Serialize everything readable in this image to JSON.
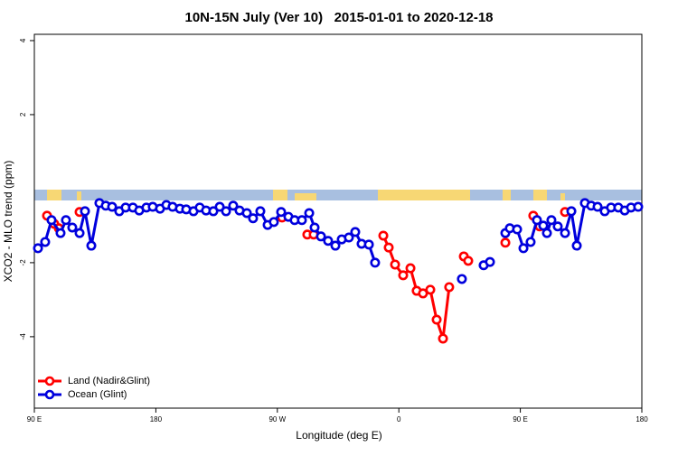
{
  "chart_data": {
    "type": "line",
    "title": "10N-15N July (Ver 10)   2015-01-01 to 2020-12-18",
    "xlabel": "Longitude (deg E)",
    "ylabel": "XCO2 - MLO trend (ppm)",
    "xlim": [
      90,
      540
    ],
    "xticks": [
      {
        "value": 90,
        "label": "90 E"
      },
      180,
      {
        "value": 270,
        "label": "90 W"
      },
      {
        "value": 360,
        "label": "0"
      },
      {
        "value": 450,
        "label": "90 E"
      },
      {
        "value": 540,
        "label": "180"
      }
    ],
    "ylim": [
      -5.93,
      4.17
    ],
    "yticks": [
      -4,
      -2,
      2,
      4
    ],
    "legend": "bottom-left",
    "series": [
      {
        "name": "Land (Nadir&Glint)",
        "color": "#ff0000",
        "x": [
          99.4,
          104.7,
          108.1,
          null,
          123.5,
          null,
          273.5,
          null,
          292.2,
          296.9,
          null,
          348.5,
          352.5,
          357.2,
          363.2,
          368.6,
          373.2,
          377.9,
          383.3,
          388.0,
          392.7,
          397.3,
          null,
          408.1,
          411.4,
          null,
          438.9,
          null,
          459.6,
          464.3,
          null,
          483.1
        ],
        "values": [
          -0.73,
          -0.95,
          -1.07,
          null,
          -0.63,
          null,
          -0.78,
          null,
          -1.24,
          -1.24,
          null,
          -1.27,
          -1.59,
          -2.05,
          -2.34,
          -2.15,
          -2.76,
          -2.83,
          -2.73,
          -3.54,
          -4.05,
          -2.66,
          null,
          -1.83,
          -1.95,
          null,
          -1.46,
          null,
          -0.73,
          -1.02,
          null,
          -0.63
        ]
      },
      {
        "name": "Ocean (Glint)",
        "color": "#0000dd",
        "x": [
          92.7,
          98.0,
          102.7,
          109.4,
          113.4,
          118.1,
          123.5,
          127.5,
          132.2,
          138.2,
          142.9,
          147.6,
          152.9,
          157.6,
          163.0,
          167.7,
          173.0,
          177.7,
          183.1,
          187.8,
          192.4,
          197.8,
          202.5,
          207.9,
          212.5,
          217.2,
          222.6,
          227.3,
          232.0,
          237.3,
          242.0,
          247.4,
          252.0,
          257.4,
          262.8,
          267.4,
          272.8,
          278.2,
          282.8,
          288.2,
          293.6,
          297.6,
          302.3,
          307.6,
          313.0,
          317.7,
          323.0,
          327.7,
          332.4,
          337.8,
          342.4,
          null,
          406.7,
          null,
          422.8,
          427.5,
          null,
          438.9,
          442.2,
          447.6,
          452.3,
          457.6,
          462.3,
          467.0,
          469.7,
          473.0,
          477.7,
          483.1,
          487.8,
          491.8,
          497.8,
          502.5,
          507.2,
          512.5,
          517.2,
          522.6,
          527.3,
          532.0,
          537.3
        ],
        "values": [
          -1.61,
          -1.44,
          -0.85,
          -1.2,
          -0.85,
          -1.05,
          -1.2,
          -0.61,
          -1.54,
          -0.39,
          -0.46,
          -0.49,
          -0.61,
          -0.51,
          -0.51,
          -0.59,
          -0.51,
          -0.49,
          -0.54,
          -0.44,
          -0.49,
          -0.54,
          -0.56,
          -0.61,
          -0.51,
          -0.59,
          -0.61,
          -0.49,
          -0.61,
          -0.46,
          -0.59,
          -0.66,
          -0.8,
          -0.61,
          -0.98,
          -0.9,
          -0.63,
          -0.76,
          -0.85,
          -0.85,
          -0.66,
          -1.05,
          -1.29,
          -1.41,
          -1.54,
          -1.37,
          -1.32,
          -1.17,
          -1.49,
          -1.51,
          -2.0,
          null,
          -2.44,
          null,
          -2.07,
          -1.98,
          null,
          -1.2,
          -1.07,
          -1.1,
          -1.61,
          -1.44,
          -0.85,
          -1.0,
          -1.2,
          -0.85,
          -1.02,
          -1.2,
          -0.61,
          -1.54,
          -0.39,
          -0.46,
          -0.49,
          -0.61,
          -0.51,
          -0.51,
          -0.59,
          -0.51,
          -0.49
        ]
      }
    ]
  }
}
